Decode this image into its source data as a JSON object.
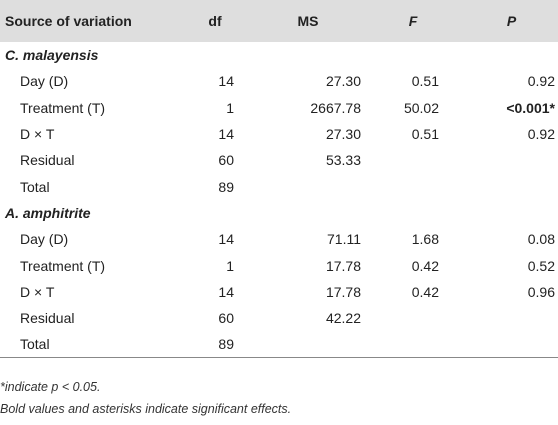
{
  "table": {
    "headers": [
      "Source of variation",
      "df",
      "MS",
      "F",
      "P"
    ],
    "groups": [
      {
        "name": "C. malayensis",
        "rows": [
          {
            "source": "Day (D)",
            "df": "14",
            "ms": "27.30",
            "f": "0.51",
            "p": "0.92",
            "p_bold": false
          },
          {
            "source": "Treatment (T)",
            "df": "1",
            "ms": "2667.78",
            "f": "50.02",
            "p": "<0.001*",
            "p_bold": true
          },
          {
            "source": "D × T",
            "df": "14",
            "ms": "27.30",
            "f": "0.51",
            "p": "0.92",
            "p_bold": false
          },
          {
            "source": "Residual",
            "df": "60",
            "ms": "53.33",
            "f": "",
            "p": "",
            "p_bold": false
          },
          {
            "source": "Total",
            "df": "89",
            "ms": "",
            "f": "",
            "p": "",
            "p_bold": false
          }
        ]
      },
      {
        "name": "A. amphitrite",
        "rows": [
          {
            "source": "Day (D)",
            "df": "14",
            "ms": "71.11",
            "f": "1.68",
            "p": "0.08",
            "p_bold": false
          },
          {
            "source": "Treatment (T)",
            "df": "1",
            "ms": "17.78",
            "f": "0.42",
            "p": "0.52",
            "p_bold": false
          },
          {
            "source": "D × T",
            "df": "14",
            "ms": "17.78",
            "f": "0.42",
            "p": "0.96",
            "p_bold": false
          },
          {
            "source": "Residual",
            "df": "60",
            "ms": "42.22",
            "f": "",
            "p": "",
            "p_bold": false
          },
          {
            "source": "Total",
            "df": "89",
            "ms": "",
            "f": "",
            "p": "",
            "p_bold": false
          }
        ]
      }
    ]
  },
  "footnotes": {
    "significance": "*indicate p < 0.05.",
    "bold_note": "Bold values and asterisks indicate significant effects."
  }
}
